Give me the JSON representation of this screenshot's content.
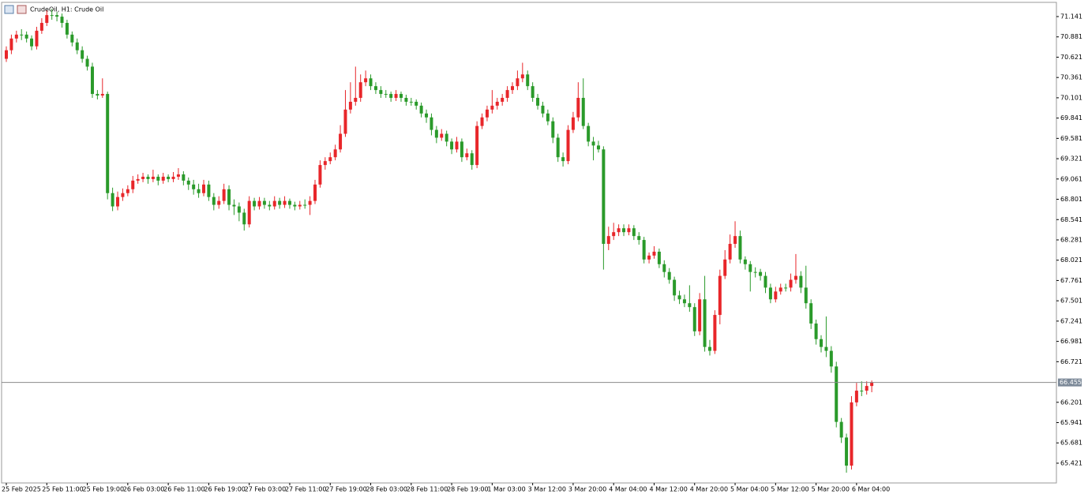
{
  "chart_data": {
    "type": "candlestick",
    "title": "CrudeOil, H1:  Crude Oil",
    "up_color": "#e8262a",
    "down_color": "#2a9a2a",
    "grid": false,
    "ylim": [
      65.168,
      71.323
    ],
    "yticks": [
      71.141,
      70.881,
      70.621,
      70.361,
      70.101,
      69.841,
      69.581,
      69.321,
      69.061,
      68.801,
      68.541,
      68.281,
      68.021,
      67.761,
      67.501,
      67.241,
      66.981,
      66.721,
      66.201,
      65.941,
      65.681,
      65.421
    ],
    "current_price": 66.455,
    "categories": [
      "25 Feb 2025",
      null,
      null,
      null,
      null,
      null,
      null,
      null,
      "25 Feb 11:00",
      null,
      null,
      null,
      null,
      null,
      null,
      null,
      "25 Feb 19:00",
      null,
      null,
      null,
      null,
      null,
      null,
      null,
      "26 Feb 03:00",
      null,
      null,
      null,
      null,
      null,
      null,
      null,
      "26 Feb 11:00",
      null,
      null,
      null,
      null,
      null,
      null,
      null,
      "26 Feb 19:00",
      null,
      null,
      null,
      null,
      null,
      null,
      null,
      "27 Feb 03:00",
      null,
      null,
      null,
      null,
      null,
      null,
      null,
      "27 Feb 11:00",
      null,
      null,
      null,
      null,
      null,
      null,
      null,
      "27 Feb 19:00",
      null,
      null,
      null,
      null,
      null,
      null,
      null,
      "28 Feb 03:00",
      null,
      null,
      null,
      null,
      null,
      null,
      null,
      "28 Feb 11:00",
      null,
      null,
      null,
      null,
      null,
      null,
      null,
      "28 Feb 19:00",
      null,
      null,
      null,
      null,
      null,
      null,
      null,
      "1 Mar 03:00",
      null,
      null,
      null,
      null,
      null,
      null,
      null,
      "3 Mar 12:00",
      null,
      null,
      null,
      null,
      null,
      null,
      null,
      "3 Mar 20:00",
      null,
      null,
      null,
      null,
      null,
      null,
      null,
      "4 Mar 04:00",
      null,
      null,
      null,
      null,
      null,
      null,
      null,
      "4 Mar 12:00",
      null,
      null,
      null,
      null,
      null,
      null,
      null,
      "4 Mar 20:00",
      null,
      null,
      null,
      null,
      null,
      null,
      null,
      "5 Mar 04:00",
      null,
      null,
      null,
      null,
      null,
      null,
      null,
      "5 Mar 12:00",
      null,
      null,
      null,
      null,
      null,
      null,
      null,
      "5 Mar 20:00",
      null,
      null,
      null,
      null,
      null,
      null,
      null,
      "6 Mar 04:00",
      null,
      null,
      null
    ],
    "ohlc": [
      [
        70.6,
        70.76,
        70.56,
        70.71
      ],
      [
        70.71,
        70.91,
        70.66,
        70.86
      ],
      [
        70.86,
        70.96,
        70.81,
        70.91
      ],
      [
        70.91,
        70.98,
        70.84,
        70.91
      ],
      [
        70.91,
        70.95,
        70.81,
        70.86
      ],
      [
        70.86,
        70.9,
        70.71,
        70.76
      ],
      [
        70.76,
        71.01,
        70.72,
        70.96
      ],
      [
        70.96,
        71.12,
        70.92,
        71.06
      ],
      [
        71.06,
        71.22,
        71.02,
        71.16
      ],
      [
        71.16,
        71.24,
        71.1,
        71.16
      ],
      [
        71.16,
        71.2,
        71.08,
        71.14
      ],
      [
        71.14,
        71.18,
        71.0,
        71.06
      ],
      [
        71.06,
        71.1,
        70.86,
        70.91
      ],
      [
        70.91,
        70.95,
        70.76,
        70.81
      ],
      [
        70.81,
        70.86,
        70.66,
        70.71
      ],
      [
        70.71,
        70.76,
        70.55,
        70.6
      ],
      [
        70.6,
        70.64,
        70.45,
        70.5
      ],
      [
        70.5,
        70.55,
        70.1,
        70.15
      ],
      [
        70.15,
        70.2,
        70.08,
        70.13
      ],
      [
        70.13,
        70.35,
        70.1,
        70.15
      ],
      [
        70.15,
        70.18,
        68.8,
        68.88
      ],
      [
        68.88,
        68.95,
        68.65,
        68.71
      ],
      [
        68.71,
        68.9,
        68.66,
        68.83
      ],
      [
        68.83,
        68.94,
        68.78,
        68.88
      ],
      [
        68.88,
        68.98,
        68.84,
        68.93
      ],
      [
        68.93,
        69.1,
        68.88,
        69.04
      ],
      [
        69.04,
        69.12,
        69.0,
        69.06
      ],
      [
        69.06,
        69.14,
        69.02,
        69.09
      ],
      [
        69.09,
        69.12,
        69.0,
        69.06
      ],
      [
        69.06,
        69.18,
        69.02,
        69.09
      ],
      [
        69.09,
        69.12,
        68.98,
        69.04
      ],
      [
        69.04,
        69.14,
        69.0,
        69.09
      ],
      [
        69.09,
        69.12,
        69.02,
        69.06
      ],
      [
        69.06,
        69.15,
        69.02,
        69.09
      ],
      [
        69.09,
        69.2,
        69.05,
        69.12
      ],
      [
        69.12,
        69.16,
        68.98,
        69.04
      ],
      [
        69.04,
        69.08,
        68.92,
        68.99
      ],
      [
        68.99,
        69.05,
        68.86,
        68.93
      ],
      [
        68.93,
        69.0,
        68.82,
        68.88
      ],
      [
        68.88,
        69.05,
        68.84,
        68.99
      ],
      [
        68.99,
        69.04,
        68.78,
        68.83
      ],
      [
        68.83,
        68.88,
        68.66,
        68.73
      ],
      [
        68.73,
        68.84,
        68.68,
        68.78
      ],
      [
        68.78,
        69.0,
        68.74,
        68.93
      ],
      [
        68.93,
        68.98,
        68.66,
        68.73
      ],
      [
        68.73,
        68.8,
        68.6,
        68.71
      ],
      [
        68.71,
        68.76,
        68.52,
        68.63
      ],
      [
        68.63,
        68.68,
        68.4,
        68.48
      ],
      [
        68.48,
        68.84,
        68.44,
        68.78
      ],
      [
        68.78,
        68.82,
        68.66,
        68.71
      ],
      [
        68.71,
        68.83,
        68.67,
        68.78
      ],
      [
        68.78,
        68.82,
        68.68,
        68.73
      ],
      [
        68.73,
        68.78,
        68.66,
        68.71
      ],
      [
        68.71,
        68.84,
        68.67,
        68.78
      ],
      [
        68.78,
        68.82,
        68.68,
        68.73
      ],
      [
        68.73,
        68.84,
        68.69,
        68.78
      ],
      [
        68.78,
        68.81,
        68.68,
        68.73
      ],
      [
        68.73,
        68.77,
        68.66,
        68.71
      ],
      [
        68.71,
        68.78,
        68.67,
        68.73
      ],
      [
        68.73,
        68.8,
        68.68,
        68.73
      ],
      [
        68.73,
        68.84,
        68.6,
        68.78
      ],
      [
        68.78,
        69.05,
        68.74,
        68.99
      ],
      [
        68.99,
        69.3,
        68.95,
        69.24
      ],
      [
        69.24,
        69.34,
        69.18,
        69.29
      ],
      [
        69.29,
        69.4,
        69.25,
        69.34
      ],
      [
        69.34,
        69.5,
        69.3,
        69.44
      ],
      [
        69.44,
        69.75,
        69.4,
        69.64
      ],
      [
        69.64,
        70.2,
        69.6,
        69.95
      ],
      [
        69.95,
        70.3,
        69.9,
        70.05
      ],
      [
        70.05,
        70.5,
        70.0,
        70.1
      ],
      [
        70.1,
        70.4,
        70.05,
        70.3
      ],
      [
        70.3,
        70.45,
        70.25,
        70.35
      ],
      [
        70.35,
        70.4,
        70.2,
        70.25
      ],
      [
        70.25,
        70.3,
        70.15,
        70.2
      ],
      [
        70.2,
        70.25,
        70.1,
        70.15
      ],
      [
        70.15,
        70.2,
        70.1,
        70.15
      ],
      [
        70.15,
        70.18,
        70.05,
        70.1
      ],
      [
        70.1,
        70.2,
        70.06,
        70.15
      ],
      [
        70.15,
        70.18,
        70.05,
        70.1
      ],
      [
        70.1,
        70.14,
        70.0,
        70.05
      ],
      [
        70.05,
        70.1,
        70.0,
        70.05
      ],
      [
        70.05,
        70.08,
        69.95,
        70.0
      ],
      [
        70.0,
        70.04,
        69.85,
        69.9
      ],
      [
        69.9,
        69.95,
        69.78,
        69.85
      ],
      [
        69.85,
        69.9,
        69.62,
        69.69
      ],
      [
        69.69,
        69.74,
        69.52,
        69.59
      ],
      [
        69.59,
        69.7,
        69.55,
        69.64
      ],
      [
        69.64,
        69.68,
        69.48,
        69.54
      ],
      [
        69.54,
        69.58,
        69.38,
        69.44
      ],
      [
        69.44,
        69.6,
        69.4,
        69.54
      ],
      [
        69.54,
        69.58,
        69.28,
        69.34
      ],
      [
        69.34,
        69.45,
        69.3,
        69.39
      ],
      [
        69.39,
        69.43,
        69.18,
        69.24
      ],
      [
        69.24,
        69.8,
        69.2,
        69.74
      ],
      [
        69.74,
        69.9,
        69.7,
        69.85
      ],
      [
        69.85,
        70.0,
        69.8,
        69.95
      ],
      [
        69.95,
        70.2,
        69.9,
        70.0
      ],
      [
        70.0,
        70.1,
        69.95,
        70.05
      ],
      [
        70.05,
        70.15,
        70.0,
        70.1
      ],
      [
        70.1,
        70.25,
        70.05,
        70.2
      ],
      [
        70.2,
        70.3,
        70.15,
        70.25
      ],
      [
        70.25,
        70.45,
        70.2,
        70.35
      ],
      [
        70.35,
        70.55,
        70.3,
        70.4
      ],
      [
        70.4,
        70.45,
        70.2,
        70.25
      ],
      [
        70.25,
        70.3,
        70.05,
        70.1
      ],
      [
        70.1,
        70.15,
        69.95,
        70.0
      ],
      [
        70.0,
        70.05,
        69.85,
        69.9
      ],
      [
        69.9,
        69.95,
        69.75,
        69.8
      ],
      [
        69.8,
        69.85,
        69.52,
        69.59
      ],
      [
        69.59,
        69.64,
        69.28,
        69.34
      ],
      [
        69.34,
        69.4,
        69.22,
        69.29
      ],
      [
        69.29,
        69.75,
        69.25,
        69.69
      ],
      [
        69.69,
        69.92,
        69.65,
        69.85
      ],
      [
        69.85,
        70.3,
        69.8,
        70.1
      ],
      [
        70.1,
        70.35,
        69.7,
        69.74
      ],
      [
        69.74,
        69.78,
        69.48,
        69.54
      ],
      [
        69.54,
        69.6,
        69.3,
        69.49
      ],
      [
        69.49,
        69.55,
        69.4,
        69.44
      ],
      [
        69.44,
        69.48,
        67.9,
        68.23
      ],
      [
        68.23,
        68.45,
        68.15,
        68.33
      ],
      [
        68.33,
        68.5,
        68.28,
        68.38
      ],
      [
        68.38,
        68.48,
        68.33,
        68.43
      ],
      [
        68.43,
        68.48,
        68.33,
        68.38
      ],
      [
        68.38,
        68.48,
        68.34,
        68.43
      ],
      [
        68.43,
        68.47,
        68.28,
        68.33
      ],
      [
        68.33,
        68.38,
        68.22,
        68.28
      ],
      [
        68.28,
        68.32,
        67.98,
        68.03
      ],
      [
        68.03,
        68.12,
        67.98,
        68.08
      ],
      [
        68.08,
        68.2,
        68.04,
        68.13
      ],
      [
        68.13,
        68.17,
        67.92,
        67.97
      ],
      [
        67.97,
        68.02,
        67.8,
        67.87
      ],
      [
        67.87,
        67.92,
        67.72,
        67.77
      ],
      [
        67.77,
        67.81,
        67.5,
        67.57
      ],
      [
        67.57,
        67.63,
        67.46,
        67.52
      ],
      [
        67.52,
        67.58,
        67.42,
        67.47
      ],
      [
        67.47,
        67.7,
        67.36,
        67.42
      ],
      [
        67.42,
        67.47,
        67.05,
        67.11
      ],
      [
        67.11,
        67.6,
        67.06,
        67.52
      ],
      [
        67.52,
        67.82,
        66.85,
        66.91
      ],
      [
        66.91,
        67.0,
        66.8,
        66.86
      ],
      [
        66.86,
        67.38,
        66.82,
        67.32
      ],
      [
        67.32,
        67.9,
        67.2,
        67.82
      ],
      [
        67.82,
        68.15,
        67.78,
        68.03
      ],
      [
        68.03,
        68.35,
        67.98,
        68.23
      ],
      [
        68.23,
        68.52,
        68.18,
        68.33
      ],
      [
        68.33,
        68.4,
        67.98,
        68.03
      ],
      [
        68.03,
        68.07,
        67.9,
        67.97
      ],
      [
        67.97,
        68.01,
        67.62,
        67.87
      ],
      [
        67.87,
        67.93,
        67.8,
        67.87
      ],
      [
        67.87,
        67.91,
        67.76,
        67.82
      ],
      [
        67.82,
        67.87,
        67.6,
        67.67
      ],
      [
        67.67,
        67.72,
        67.47,
        67.52
      ],
      [
        67.52,
        67.68,
        67.48,
        67.62
      ],
      [
        67.62,
        67.72,
        67.58,
        67.67
      ],
      [
        67.67,
        67.72,
        67.62,
        67.67
      ],
      [
        67.67,
        67.85,
        67.62,
        67.77
      ],
      [
        67.77,
        68.1,
        67.72,
        67.82
      ],
      [
        67.82,
        67.88,
        67.6,
        67.67
      ],
      [
        67.67,
        67.95,
        67.4,
        67.47
      ],
      [
        67.47,
        67.52,
        67.14,
        67.21
      ],
      [
        67.21,
        67.26,
        66.94,
        67.01
      ],
      [
        67.01,
        67.06,
        66.84,
        66.91
      ],
      [
        66.91,
        67.3,
        66.78,
        66.86
      ],
      [
        66.86,
        66.92,
        66.58,
        66.66
      ],
      [
        66.66,
        66.72,
        65.88,
        65.95
      ],
      [
        65.95,
        66.0,
        65.68,
        65.75
      ],
      [
        65.75,
        65.8,
        65.3,
        65.39
      ],
      [
        65.39,
        66.28,
        65.34,
        66.2
      ],
      [
        66.2,
        66.45,
        66.15,
        66.35
      ],
      [
        66.35,
        66.47,
        66.28,
        66.35
      ],
      [
        66.35,
        66.47,
        66.3,
        66.41
      ],
      [
        66.41,
        66.48,
        66.33,
        66.455
      ]
    ]
  }
}
